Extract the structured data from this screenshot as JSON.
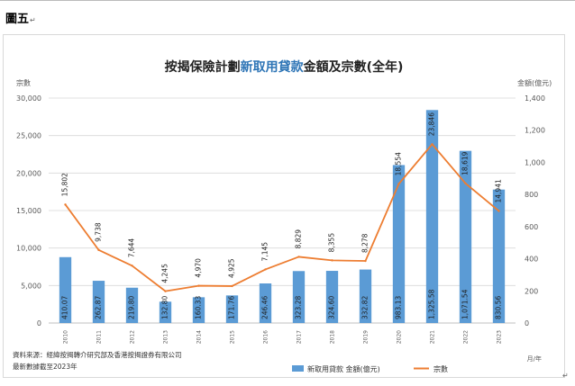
{
  "document": {
    "label": "圖五",
    "paragraph_mark": "↵"
  },
  "colors": {
    "bar": "#5b9bd5",
    "line": "#ed7d31",
    "axis_text": "#595959",
    "grid": "#d9d9d9"
  },
  "chart_data": {
    "type": "bar",
    "title_parts": [
      {
        "text": "按揭保險計劃",
        "color": "#222222"
      },
      {
        "text": "新取用貸款",
        "color": "#2e75b6"
      },
      {
        "text": "金額及宗數(全年)",
        "color": "#222222"
      }
    ],
    "categories": [
      "2010",
      "2011",
      "2012",
      "2013",
      "2014",
      "2015",
      "2016",
      "2017",
      "2018",
      "2019",
      "2020",
      "2021",
      "2022",
      "2023"
    ],
    "series": [
      {
        "name": "新取用貸款 金額(億元)",
        "type": "bar",
        "axis": "right",
        "values": [
          410.07,
          262.87,
          219.8,
          132.8,
          160.33,
          171.76,
          246.46,
          323.28,
          324.6,
          332.82,
          983.13,
          1325.58,
          1071.54,
          830.56
        ],
        "labels": [
          "410.07",
          "262.87",
          "219.80",
          "132.80",
          "160.33",
          "171.76",
          "246.46",
          "323.28",
          "324.60",
          "332.82",
          "983.13",
          "1,325.58",
          "1,071.54",
          "830.56"
        ]
      },
      {
        "name": "宗數",
        "type": "line",
        "axis": "left",
        "values": [
          15802,
          9738,
          7644,
          4245,
          4970,
          4925,
          7145,
          8829,
          8355,
          8278,
          18554,
          23846,
          18619,
          14941
        ],
        "labels": [
          "15,802",
          "9,738",
          "7,644",
          "4,245",
          "4,970",
          "4,925",
          "7,145",
          "8,829",
          "8,355",
          "8,278",
          "18,554",
          "23,846",
          "18,619",
          "14,941"
        ]
      }
    ],
    "left_axis": {
      "title": "宗數",
      "range": [
        0,
        30000
      ],
      "ticks": [
        "0",
        "5,000",
        "10,000",
        "15,000",
        "20,000",
        "25,000",
        "30,000"
      ]
    },
    "right_axis": {
      "title": "金額(億元)",
      "range": [
        0,
        1400
      ],
      "ticks": [
        "0",
        "200",
        "400",
        "600",
        "800",
        "1,000",
        "1,200",
        "1,400"
      ]
    },
    "x_axis_note": "月/年",
    "grid": true,
    "legend_position": "bottom-right",
    "footnotes": [
      "資料來源：經緯按揭轉介研究部及香港按揭證券有限公司",
      "最新數據截至2023年"
    ]
  }
}
